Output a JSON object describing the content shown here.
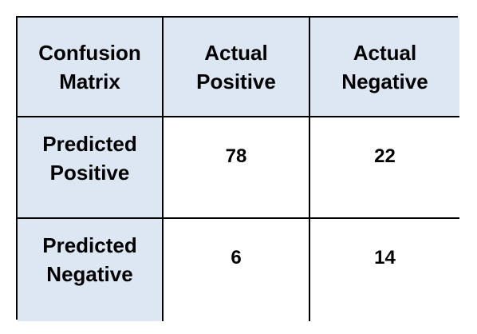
{
  "chart_data": {
    "type": "table",
    "corner_label": "Confusion\nMatrix",
    "columns": [
      "Actual\nPositive",
      "Actual\nNegative"
    ],
    "rows": [
      {
        "label": "Predicted\nPositive",
        "values": [
          78,
          22
        ]
      },
      {
        "label": "Predicted\nNegative",
        "values": [
          6,
          14
        ]
      }
    ]
  },
  "colors": {
    "header_fill": "#dde7f3",
    "border": "#000000",
    "body_fill": "#ffffff"
  }
}
